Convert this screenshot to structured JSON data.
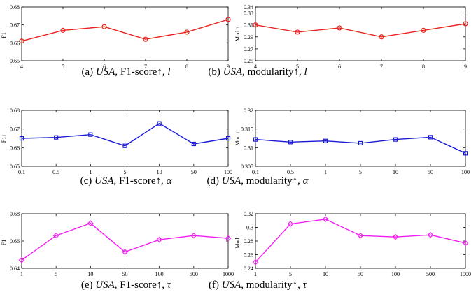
{
  "colors": {
    "red": "#e8221c",
    "blue": "#1b1bd6",
    "magenta": "#f01df0",
    "axis": "#000000",
    "background": "#ffffff"
  },
  "chart_data": [
    {
      "id": "a",
      "type": "line",
      "color": "red",
      "marker": "circle",
      "ylabel": "F1↑",
      "x_tick_labels": [
        "4",
        "5",
        "6",
        "7",
        "8",
        "9"
      ],
      "y_ticks": [
        0.65,
        0.66,
        0.67,
        0.68
      ],
      "y_tick_labels": [
        "0.65",
        "0.66",
        "0.67",
        "0.68"
      ],
      "ylim": [
        0.65,
        0.68
      ],
      "values": [
        0.661,
        0.667,
        0.669,
        0.662,
        0.666,
        0.673
      ],
      "caption": {
        "label": "(a)",
        "dataset": "USA",
        "metric": "F1-score↑,",
        "param": "l"
      }
    },
    {
      "id": "b",
      "type": "line",
      "color": "red",
      "marker": "circle",
      "ylabel": "Mod ↑",
      "x_tick_labels": [
        "4",
        "5",
        "6",
        "7",
        "8",
        "9"
      ],
      "y_ticks": [
        0.25,
        0.27,
        0.29,
        0.31,
        0.33,
        0.34
      ],
      "y_tick_labels": [
        "0.25",
        "0.27",
        "0.29",
        "0.31",
        "0.33",
        "0.34"
      ],
      "ylim": [
        0.25,
        0.34
      ],
      "values": [
        0.31,
        0.298,
        0.305,
        0.29,
        0.301,
        0.312
      ],
      "caption": {
        "label": "(b)",
        "dataset": "USA",
        "metric": "modularity↑,",
        "param": "l"
      }
    },
    {
      "id": "c",
      "type": "line",
      "color": "blue",
      "marker": "square",
      "ylabel": "F1↑",
      "x_tick_labels": [
        "0.1",
        "0.5",
        "1",
        "5",
        "10",
        "50",
        "100"
      ],
      "y_ticks": [
        0.65,
        0.66,
        0.67,
        0.68
      ],
      "y_tick_labels": [
        "0.65",
        "0.66",
        "0.67",
        "0.68"
      ],
      "ylim": [
        0.65,
        0.68
      ],
      "values": [
        0.665,
        0.6655,
        0.667,
        0.661,
        0.673,
        0.662,
        0.665
      ],
      "caption": {
        "label": "(c)",
        "dataset": "USA",
        "metric": "F1-score↑,",
        "param": "α"
      }
    },
    {
      "id": "d",
      "type": "line",
      "color": "blue",
      "marker": "square",
      "ylabel": "Mod ↑",
      "x_tick_labels": [
        "0.1",
        "0.5",
        "1",
        "5",
        "10",
        "50",
        "100"
      ],
      "y_ticks": [
        0.305,
        0.31,
        0.315,
        0.32
      ],
      "y_tick_labels": [
        "0.305",
        "0.31",
        "0.315",
        "0.32"
      ],
      "ylim": [
        0.305,
        0.32
      ],
      "values": [
        0.3122,
        0.3115,
        0.3118,
        0.3112,
        0.3122,
        0.3128,
        0.3085
      ],
      "caption": {
        "label": "(d)",
        "dataset": "USA",
        "metric": "modularity↑,",
        "param": "α"
      }
    },
    {
      "id": "e",
      "type": "line",
      "color": "magenta",
      "marker": "diamond",
      "ylabel": "F1↑",
      "x_tick_labels": [
        "1",
        "5",
        "10",
        "50",
        "100",
        "500",
        "1000"
      ],
      "y_ticks": [
        0.64,
        0.66,
        0.68
      ],
      "y_tick_labels": [
        "0.64",
        "0.66",
        "0.68"
      ],
      "ylim": [
        0.64,
        0.68
      ],
      "values": [
        0.646,
        0.664,
        0.673,
        0.652,
        0.661,
        0.664,
        0.662
      ],
      "caption": {
        "label": "(e)",
        "dataset": "USA",
        "metric": "F1-score↑,",
        "param": "τ"
      }
    },
    {
      "id": "f",
      "type": "line",
      "color": "magenta",
      "marker": "diamond",
      "ylabel": "Mod ↑",
      "x_tick_labels": [
        "1",
        "5",
        "10",
        "50",
        "100",
        "500",
        "1000"
      ],
      "y_ticks": [
        0.24,
        0.26,
        0.28,
        0.3,
        0.32
      ],
      "y_tick_labels": [
        "0.24",
        "0.26",
        "0.28",
        "0.3",
        "0.32"
      ],
      "ylim": [
        0.24,
        0.32
      ],
      "values": [
        0.249,
        0.305,
        0.312,
        0.288,
        0.286,
        0.289,
        0.277
      ],
      "caption": {
        "label": "(f)",
        "dataset": "USA",
        "metric": "modularity↑,",
        "param": "τ"
      }
    }
  ]
}
